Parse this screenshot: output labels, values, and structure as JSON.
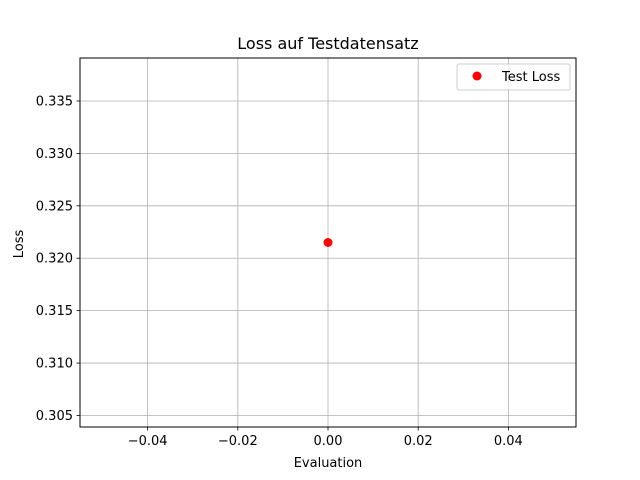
{
  "chart_data": {
    "type": "scatter",
    "title": "Loss auf Testdatensatz",
    "xlabel": "Evaluation",
    "ylabel": "Loss",
    "xlim": [
      -0.055,
      0.055
    ],
    "ylim": [
      0.3039,
      0.3391
    ],
    "xticks": [
      -0.04,
      -0.02,
      0.0,
      0.02,
      0.04
    ],
    "xtick_labels": [
      "−0.04",
      "−0.02",
      "0.00",
      "0.02",
      "0.04"
    ],
    "yticks": [
      0.305,
      0.31,
      0.315,
      0.32,
      0.325,
      0.33,
      0.335
    ],
    "ytick_labels": [
      "0.305",
      "0.310",
      "0.315",
      "0.320",
      "0.325",
      "0.330",
      "0.335"
    ],
    "grid": true,
    "legend_position": "top-right",
    "series": [
      {
        "name": "Test Loss",
        "color": "#ff0000",
        "marker": "circle",
        "x": [
          0.0
        ],
        "y": [
          0.3215
        ]
      }
    ]
  }
}
